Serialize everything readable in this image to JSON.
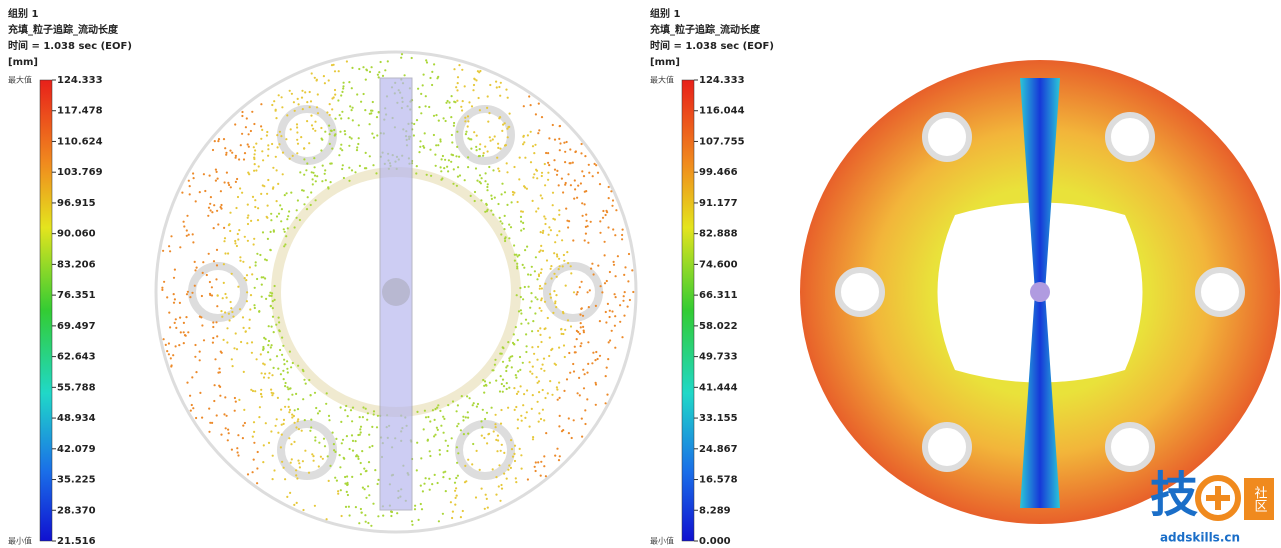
{
  "panels": [
    {
      "group": "组别 1",
      "result": "充填_粒子追踪_流动长度",
      "time": "时间 = 1.038 sec (EOF)",
      "unit": "[mm]",
      "max_label": "最大值",
      "min_label": "最小值",
      "scale": [
        "124.333",
        "117.478",
        "110.624",
        "103.769",
        "96.915",
        "90.060",
        "83.206",
        "76.351",
        "69.497",
        "62.643",
        "55.788",
        "48.934",
        "42.079",
        "35.225",
        "28.370",
        "21.516"
      ]
    },
    {
      "group": "组别 1",
      "result": "充填_粒子追踪_流动长度",
      "time": "时间 = 1.038 sec (EOF)",
      "unit": "[mm]",
      "max_label": "最大值",
      "min_label": "最小值",
      "scale": [
        "124.333",
        "116.044",
        "107.755",
        "99.466",
        "91.177",
        "82.888",
        "74.600",
        "66.311",
        "58.022",
        "49.733",
        "41.444",
        "33.155",
        "24.867",
        "16.578",
        "8.289",
        "0.000"
      ]
    }
  ],
  "watermark": {
    "logo": "技",
    "badge": "社区",
    "url": "addskills.cn"
  }
}
